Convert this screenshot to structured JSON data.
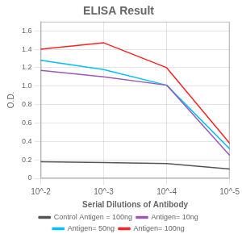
{
  "chart_data": {
    "type": "line",
    "title": "ELISA Result",
    "xlabel": "Serial Dilutions of Antibody",
    "ylabel": "O.D.",
    "x": [
      0.01,
      0.001,
      0.0001,
      1e-05
    ],
    "log": "x",
    "xlim": [
      0.01,
      1e-05
    ],
    "xticks": [
      {
        "value": 0.01,
        "label": "10^-2"
      },
      {
        "value": 0.001,
        "label": "10^-3"
      },
      {
        "value": 0.0001,
        "label": "10^-4"
      },
      {
        "value": 1e-05,
        "label": "10^-5"
      }
    ],
    "ylim": [
      0,
      1.7
    ],
    "yticks": [
      0,
      0.2,
      0.4,
      0.6,
      0.8,
      {
        "value": 1.0,
        "label": "1.0"
      },
      1.2,
      1.4,
      1.6
    ],
    "grid": true,
    "legend": "bottom",
    "series": [
      {
        "name": "Control Antigen = 100ng",
        "color": "#555555",
        "values": [
          0.18,
          0.17,
          0.16,
          0.1
        ]
      },
      {
        "name": "Antigen= 10ng",
        "color": "#9B59B6",
        "values": [
          1.17,
          1.1,
          1.01,
          0.25
        ]
      },
      {
        "name": "Antigen= 50ng",
        "color": "#00BFFF",
        "values": [
          1.28,
          1.18,
          1.01,
          0.32
        ]
      },
      {
        "name": "Antigen= 100ng",
        "color": "#FF2222",
        "values": [
          1.4,
          1.47,
          1.2,
          0.38
        ]
      }
    ]
  }
}
